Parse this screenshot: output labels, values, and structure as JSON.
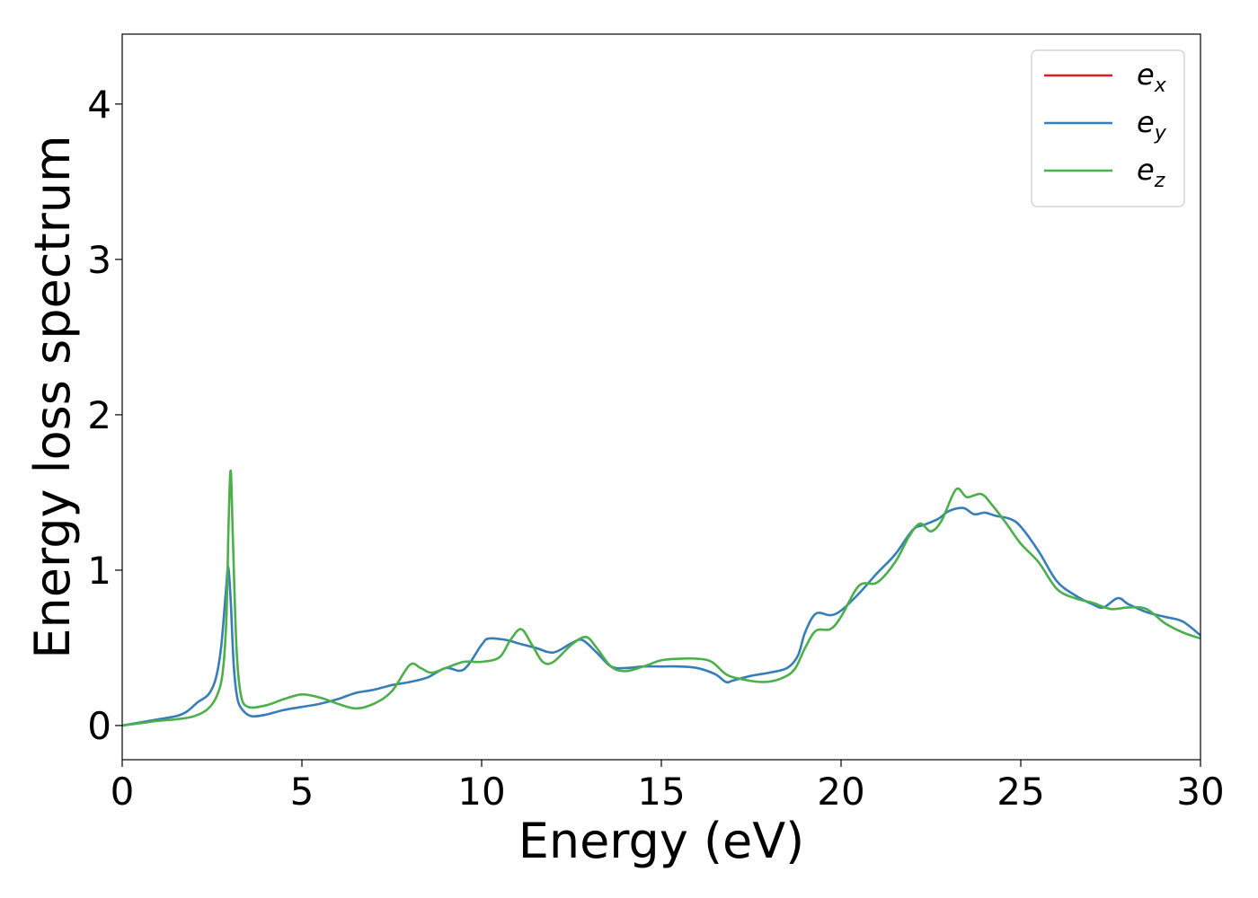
{
  "chart_data": {
    "type": "line",
    "title": "",
    "xlabel": "Energy (eV)",
    "ylabel": "Energy loss spectrum",
    "xlim": [
      0,
      30
    ],
    "ylim": [
      -0.22,
      4.45
    ],
    "xticks": [
      0,
      5,
      10,
      15,
      20,
      25,
      30
    ],
    "xtick_labels": [
      "0",
      "5",
      "10",
      "15",
      "20",
      "25",
      "30"
    ],
    "yticks": [
      0,
      1,
      2,
      3,
      4
    ],
    "ytick_labels": [
      "0",
      "1",
      "2",
      "3",
      "4"
    ],
    "grid": false,
    "legend_position": "top-right",
    "legend": [
      {
        "base": "e",
        "sub": "x",
        "color": "#e41a1c"
      },
      {
        "base": "e",
        "sub": "y",
        "color": "#377eb8"
      },
      {
        "base": "e",
        "sub": "z",
        "color": "#4daf4a"
      }
    ],
    "series": [
      {
        "name": "e_y",
        "color": "#377eb8",
        "points": [
          [
            0,
            0
          ],
          [
            0.5,
            0.02
          ],
          [
            1,
            0.04
          ],
          [
            1.5,
            0.06
          ],
          [
            1.8,
            0.09
          ],
          [
            2.1,
            0.15
          ],
          [
            2.4,
            0.2
          ],
          [
            2.6,
            0.3
          ],
          [
            2.75,
            0.5
          ],
          [
            2.88,
            0.85
          ],
          [
            2.95,
            1.02
          ],
          [
            3.02,
            0.8
          ],
          [
            3.1,
            0.4
          ],
          [
            3.2,
            0.18
          ],
          [
            3.35,
            0.1
          ],
          [
            3.6,
            0.06
          ],
          [
            4,
            0.07
          ],
          [
            4.5,
            0.1
          ],
          [
            5,
            0.12
          ],
          [
            5.5,
            0.14
          ],
          [
            6,
            0.17
          ],
          [
            6.5,
            0.21
          ],
          [
            7,
            0.23
          ],
          [
            7.5,
            0.26
          ],
          [
            8,
            0.28
          ],
          [
            8.5,
            0.31
          ],
          [
            9,
            0.37
          ],
          [
            9.5,
            0.36
          ],
          [
            10,
            0.52
          ],
          [
            10.2,
            0.56
          ],
          [
            10.7,
            0.55
          ],
          [
            11,
            0.53
          ],
          [
            11.5,
            0.5
          ],
          [
            12,
            0.47
          ],
          [
            12.5,
            0.53
          ],
          [
            12.8,
            0.55
          ],
          [
            13.2,
            0.47
          ],
          [
            13.6,
            0.38
          ],
          [
            14,
            0.37
          ],
          [
            14.5,
            0.38
          ],
          [
            15,
            0.38
          ],
          [
            15.5,
            0.38
          ],
          [
            16,
            0.37
          ],
          [
            16.5,
            0.33
          ],
          [
            16.8,
            0.28
          ],
          [
            17,
            0.29
          ],
          [
            17.5,
            0.32
          ],
          [
            18,
            0.34
          ],
          [
            18.5,
            0.37
          ],
          [
            18.8,
            0.45
          ],
          [
            19,
            0.6
          ],
          [
            19.3,
            0.72
          ],
          [
            19.7,
            0.71
          ],
          [
            20,
            0.74
          ],
          [
            20.5,
            0.85
          ],
          [
            21,
            0.98
          ],
          [
            21.5,
            1.1
          ],
          [
            22,
            1.26
          ],
          [
            22.3,
            1.29
          ],
          [
            22.7,
            1.33
          ],
          [
            23,
            1.38
          ],
          [
            23.4,
            1.4
          ],
          [
            23.7,
            1.36
          ],
          [
            24,
            1.37
          ],
          [
            24.3,
            1.35
          ],
          [
            24.7,
            1.33
          ],
          [
            25,
            1.28
          ],
          [
            25.5,
            1.12
          ],
          [
            26,
            0.93
          ],
          [
            26.5,
            0.84
          ],
          [
            27,
            0.78
          ],
          [
            27.3,
            0.76
          ],
          [
            27.7,
            0.82
          ],
          [
            28,
            0.78
          ],
          [
            28.5,
            0.73
          ],
          [
            29,
            0.7
          ],
          [
            29.5,
            0.67
          ],
          [
            30,
            0.58
          ]
        ]
      },
      {
        "name": "e_z",
        "color": "#4daf4a",
        "points": [
          [
            0,
            0
          ],
          [
            0.5,
            0.015
          ],
          [
            1,
            0.03
          ],
          [
            1.5,
            0.04
          ],
          [
            2,
            0.06
          ],
          [
            2.4,
            0.11
          ],
          [
            2.65,
            0.2
          ],
          [
            2.8,
            0.35
          ],
          [
            2.9,
            0.7
          ],
          [
            2.96,
            1.3
          ],
          [
            3.02,
            1.64
          ],
          [
            3.08,
            1.2
          ],
          [
            3.18,
            0.5
          ],
          [
            3.3,
            0.2
          ],
          [
            3.5,
            0.12
          ],
          [
            4,
            0.13
          ],
          [
            4.5,
            0.17
          ],
          [
            5,
            0.2
          ],
          [
            5.5,
            0.18
          ],
          [
            6,
            0.14
          ],
          [
            6.5,
            0.11
          ],
          [
            7,
            0.14
          ],
          [
            7.5,
            0.22
          ],
          [
            8,
            0.39
          ],
          [
            8.3,
            0.37
          ],
          [
            8.6,
            0.34
          ],
          [
            9,
            0.37
          ],
          [
            9.5,
            0.41
          ],
          [
            10,
            0.41
          ],
          [
            10.5,
            0.44
          ],
          [
            10.8,
            0.55
          ],
          [
            11.1,
            0.62
          ],
          [
            11.4,
            0.52
          ],
          [
            11.7,
            0.41
          ],
          [
            12,
            0.41
          ],
          [
            12.5,
            0.52
          ],
          [
            12.9,
            0.57
          ],
          [
            13.2,
            0.5
          ],
          [
            13.6,
            0.38
          ],
          [
            14,
            0.35
          ],
          [
            14.5,
            0.38
          ],
          [
            15,
            0.42
          ],
          [
            15.5,
            0.43
          ],
          [
            16,
            0.43
          ],
          [
            16.4,
            0.41
          ],
          [
            16.8,
            0.33
          ],
          [
            17.2,
            0.3
          ],
          [
            17.8,
            0.28
          ],
          [
            18.3,
            0.3
          ],
          [
            18.7,
            0.36
          ],
          [
            19,
            0.5
          ],
          [
            19.3,
            0.61
          ],
          [
            19.7,
            0.62
          ],
          [
            20,
            0.7
          ],
          [
            20.5,
            0.9
          ],
          [
            21,
            0.92
          ],
          [
            21.5,
            1.05
          ],
          [
            21.9,
            1.22
          ],
          [
            22.2,
            1.3
          ],
          [
            22.5,
            1.25
          ],
          [
            22.8,
            1.32
          ],
          [
            23.2,
            1.52
          ],
          [
            23.5,
            1.47
          ],
          [
            23.9,
            1.49
          ],
          [
            24.2,
            1.42
          ],
          [
            24.6,
            1.3
          ],
          [
            25,
            1.17
          ],
          [
            25.5,
            1.05
          ],
          [
            26,
            0.88
          ],
          [
            26.5,
            0.82
          ],
          [
            27,
            0.79
          ],
          [
            27.5,
            0.75
          ],
          [
            28,
            0.76
          ],
          [
            28.5,
            0.75
          ],
          [
            29,
            0.66
          ],
          [
            29.5,
            0.6
          ],
          [
            30,
            0.56
          ]
        ]
      }
    ]
  }
}
